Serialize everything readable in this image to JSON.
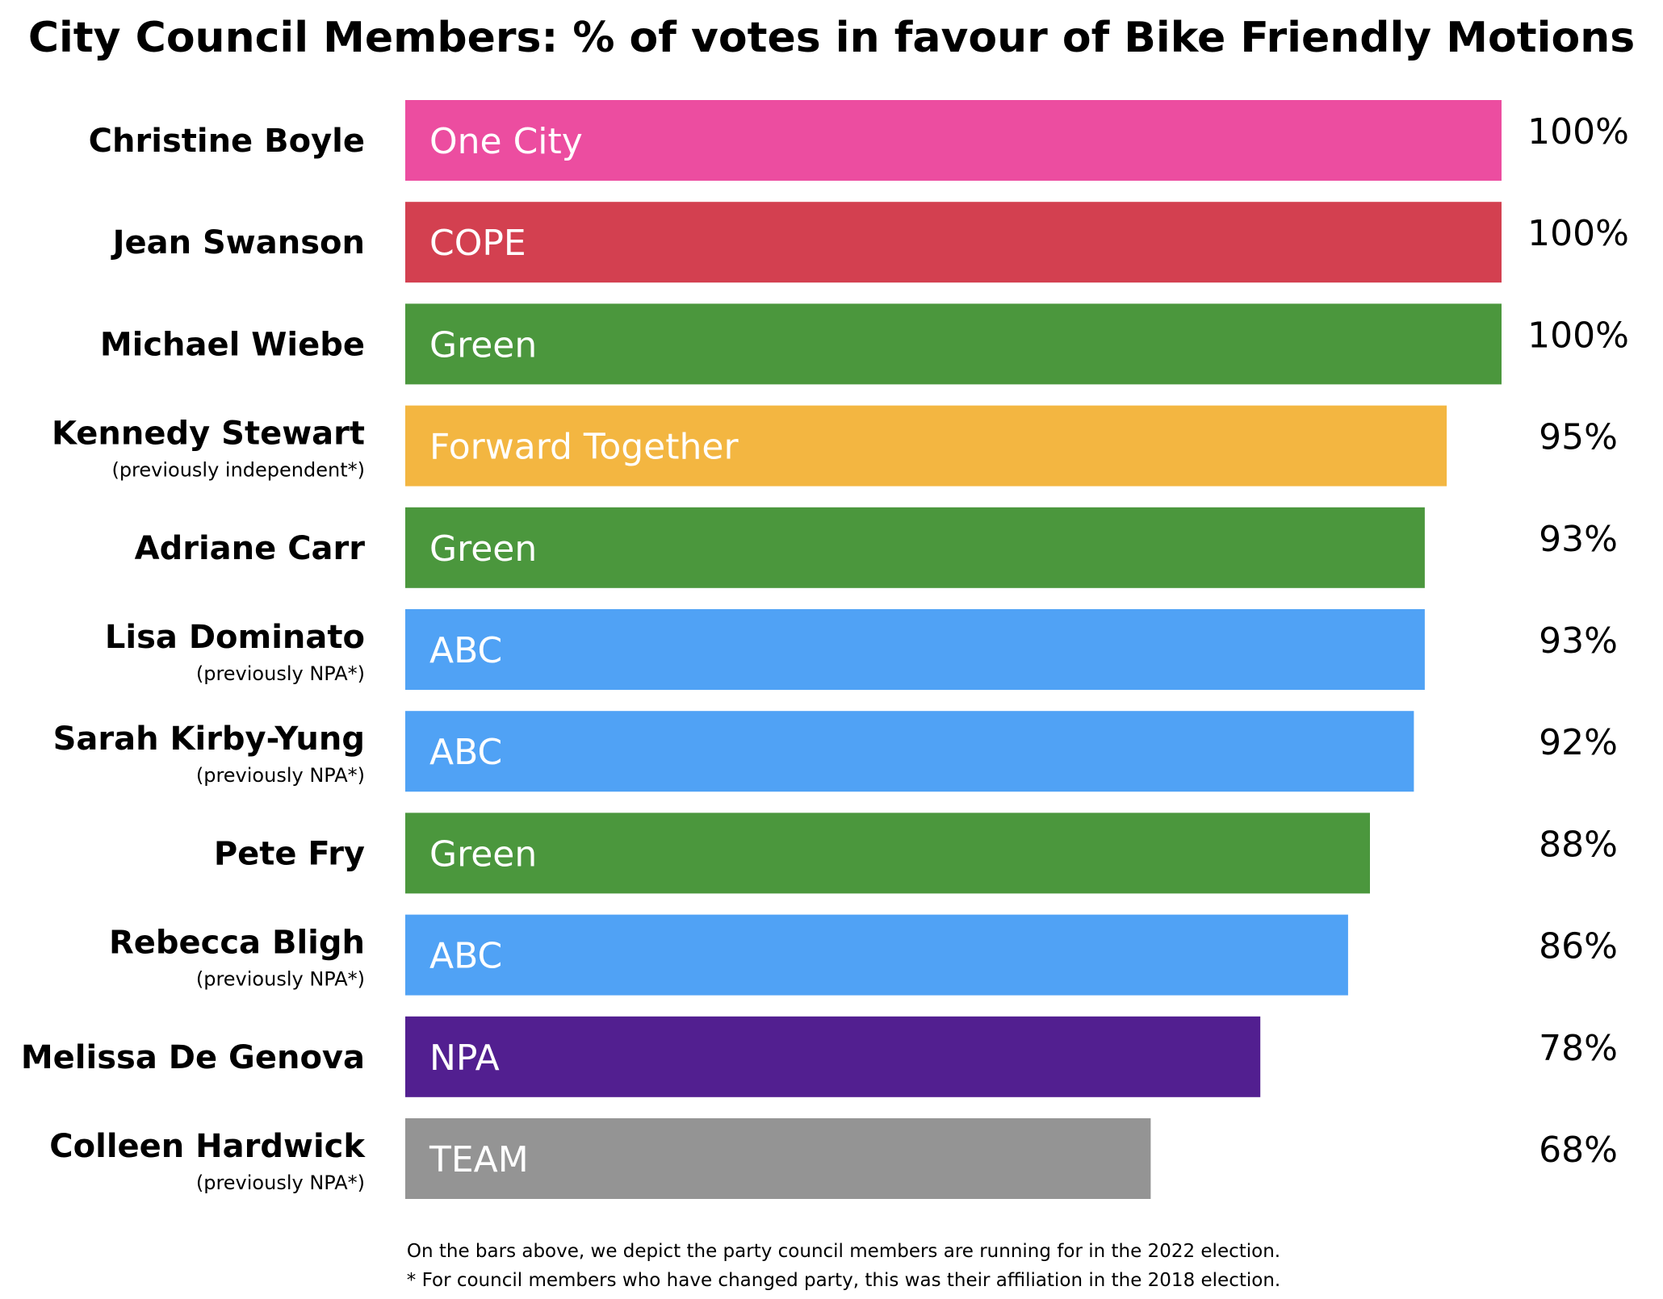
{
  "chart_data": {
    "type": "bar",
    "orientation": "horizontal",
    "title": "City Council Members: % of votes in favour of Bike Friendly Motions",
    "xlabel": "",
    "ylabel": "",
    "xlim": [
      0,
      100
    ],
    "grid": false,
    "legend": "none",
    "value_suffix": "%",
    "categories": [
      "Christine Boyle",
      "Jean Swanson",
      "Michael Wiebe",
      "Kennedy Stewart",
      "Adriane Carr",
      "Lisa Dominato",
      "Sarah Kirby-Yung",
      "Pete Fry",
      "Rebecca Bligh",
      "Melissa De Genova",
      "Colleen Hardwick"
    ],
    "notes": [
      "",
      "",
      "",
      "(previously independent*)",
      "",
      "(previously NPA*)",
      "(previously NPA*)",
      "",
      "(previously NPA*)",
      "",
      "(previously NPA*)"
    ],
    "values": [
      100,
      100,
      100,
      95,
      93,
      93,
      92,
      88,
      86,
      78,
      68
    ],
    "value_labels": [
      "100%",
      "100%",
      "100%",
      "95%",
      "93%",
      "93%",
      "92%",
      "88%",
      "86%",
      "78%",
      "68%"
    ],
    "parties": [
      "One City",
      "COPE",
      "Green",
      "Forward Together",
      "Green",
      "ABC",
      "ABC",
      "Green",
      "ABC",
      "NPA",
      "TEAM"
    ],
    "colors": [
      "#EC4DA0",
      "#D34050",
      "#4B973D",
      "#F3B641",
      "#4B973D",
      "#50A2F5",
      "#50A2F5",
      "#4B973D",
      "#50A2F5",
      "#521F90",
      "#949494"
    ],
    "footnotes": [
      "On the bars above, we depict the party council members are running for in the 2022 election.",
      "*  For council members who have changed party, this was their affiliation in the 2018 election."
    ]
  }
}
